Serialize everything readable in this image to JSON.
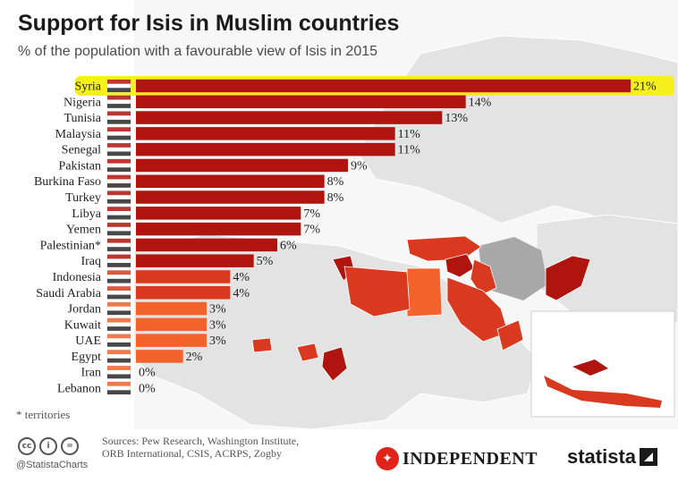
{
  "header": {
    "title": "Support for Isis in Muslim countries",
    "subtitle": "% of the population with a favourable view of Isis in 2015"
  },
  "chart_data": {
    "type": "bar",
    "orientation": "horizontal",
    "title": "Support for Isis in Muslim countries",
    "subtitle": "% of the population with a favourable view of Isis in 2015",
    "categories": [
      "Syria",
      "Nigeria",
      "Tunisia",
      "Malaysia",
      "Senegal",
      "Pakistan",
      "Burkina Faso",
      "Turkey",
      "Libya",
      "Yemen",
      "Palestinian*",
      "Iraq",
      "Indonesia",
      "Saudi Arabia",
      "Jordan",
      "Kuwait",
      "UAE",
      "Egypt",
      "Iran",
      "Lebanon"
    ],
    "values": [
      21,
      14,
      13,
      11,
      11,
      9,
      8,
      8,
      7,
      7,
      6,
      5,
      4,
      4,
      3,
      3,
      3,
      2,
      0,
      0
    ],
    "value_labels": [
      "21%",
      "14%",
      "13%",
      "11%",
      "11%",
      "9%",
      "8%",
      "8%",
      "7%",
      "7%",
      "6%",
      "5%",
      "4%",
      "4%",
      "3%",
      "3%",
      "3%",
      "2%",
      "0%",
      "0%"
    ],
    "flag_icons": [
      "syria-flag-icon",
      "nigeria-flag-icon",
      "tunisia-flag-icon",
      "malaysia-flag-icon",
      "senegal-flag-icon",
      "pakistan-flag-icon",
      "burkina-faso-flag-icon",
      "turkey-flag-icon",
      "libya-flag-icon",
      "yemen-flag-icon",
      "palestine-flag-icon",
      "iraq-flag-icon",
      "indonesia-flag-icon",
      "saudi-arabia-flag-icon",
      "jordan-flag-icon",
      "kuwait-flag-icon",
      "uae-flag-icon",
      "egypt-flag-icon",
      "iran-flag-icon",
      "lebanon-flag-icon"
    ],
    "xlim": [
      0,
      21
    ],
    "highlighted_category": "Syria",
    "highlight_color": "#f5ef1c",
    "colors": {
      "dark": "#b0140e",
      "mid": "#d8391f",
      "light": "#f2622a",
      "map_land": "#e3e3e3",
      "map_background": "#f7f7f7",
      "map_gray_country": "#a8a8a8"
    },
    "grid": false,
    "legend": "none"
  },
  "footer": {
    "footnote": "* territories",
    "sources": "Sources: Pew Research, Washington Institute, ORB International, CSIS, ACRPS, Zogby",
    "handle": "@StatistaCharts",
    "publisher": "INDEPENDENT",
    "brand": "statista"
  }
}
